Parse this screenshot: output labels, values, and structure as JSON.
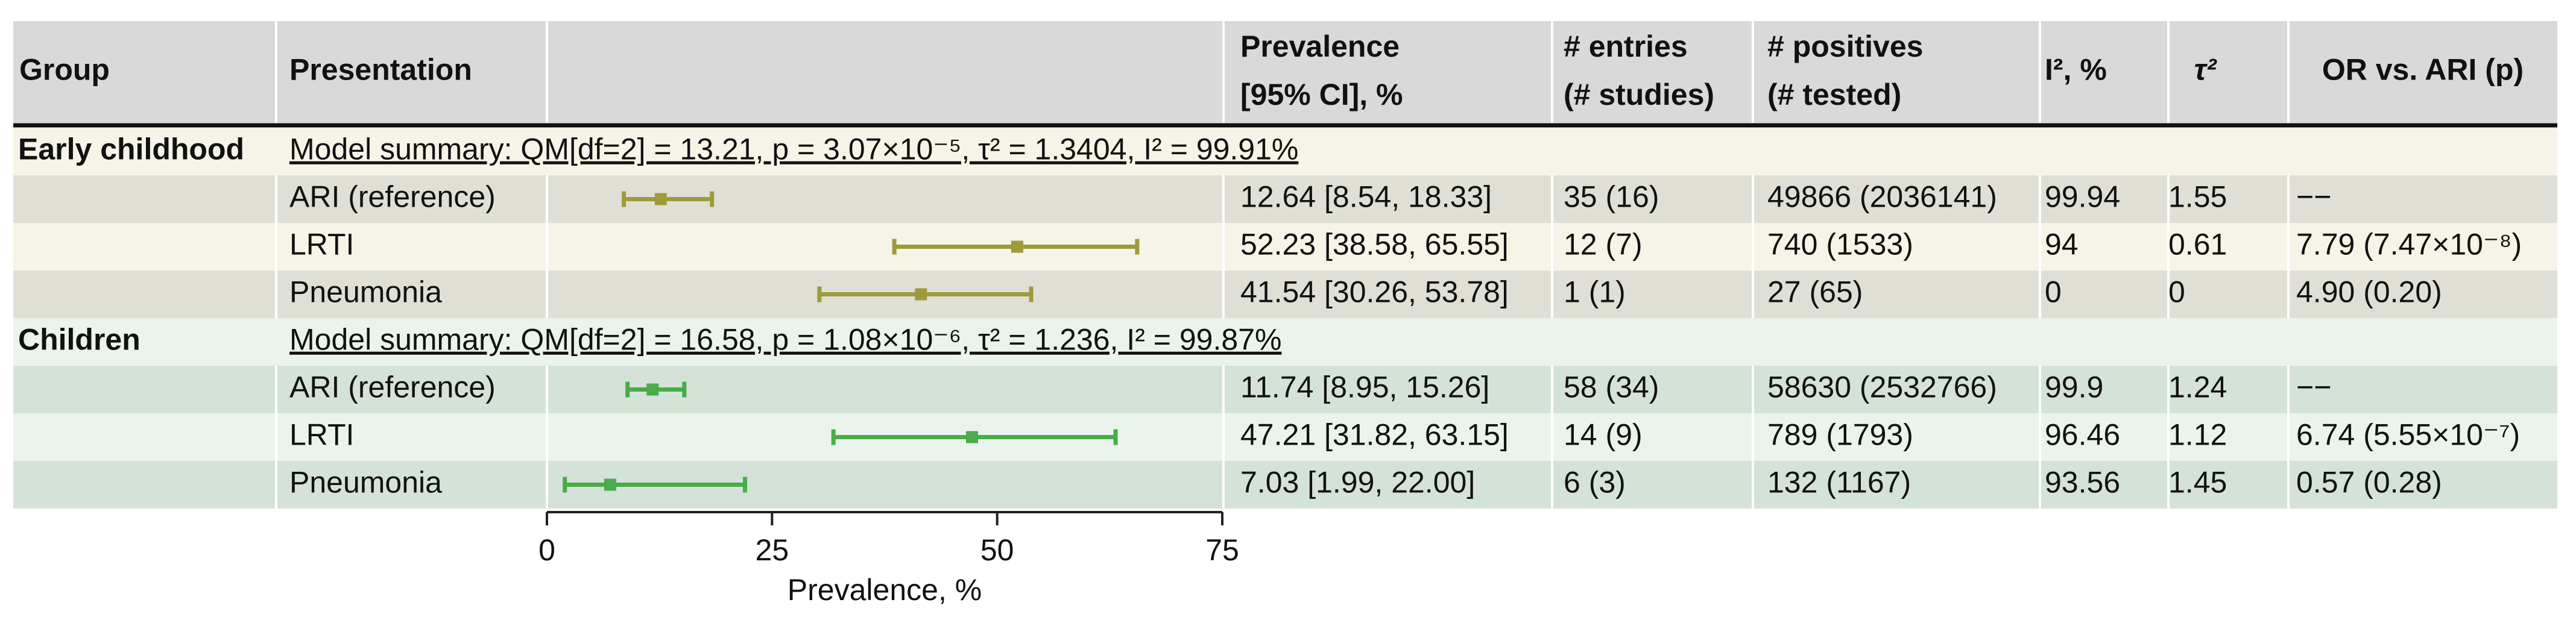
{
  "chart_data": {
    "type": "forest",
    "xlabel": "Prevalence, %",
    "xlim": [
      0,
      75
    ],
    "xticks": [
      0,
      25,
      50,
      75
    ],
    "columns": [
      [
        "Group"
      ],
      [
        "Presentation"
      ],
      [
        "Prevalence",
        "[95% CI], %"
      ],
      [
        "# entries",
        "(# studies)"
      ],
      [
        "# positives",
        "(# tested)"
      ],
      [
        "I², %"
      ],
      [
        "τ²"
      ],
      [
        "OR vs. ARI (p)"
      ]
    ],
    "groups": [
      {
        "name": "Early childhood",
        "color": "#9d9b3c",
        "summary": "Model summary: QM[df=2] = 13.21, p = 3.07×10⁻⁵, τ² = 1.3404, I² = 99.91%",
        "rows": [
          {
            "label": "ARI (reference)",
            "value": 12.64,
            "lower": 8.54,
            "upper": 18.33,
            "value_label": "12.64 [8.54, 18.33]",
            "entries": "35 (16)",
            "positives": "49866 (2036141)",
            "i2": 99.94,
            "tau2": 1.55,
            "or": "−−"
          },
          {
            "label": "LRTI",
            "value": 52.23,
            "lower": 38.58,
            "upper": 65.55,
            "value_label": "52.23 [38.58, 65.55]",
            "entries": "12 (7)",
            "positives": "740 (1533)",
            "i2": 94,
            "tau2": 0.61,
            "or": "7.79 (7.47×10⁻⁸)"
          },
          {
            "label": "Pneumonia",
            "value": 41.54,
            "lower": 30.26,
            "upper": 53.78,
            "value_label": "41.54 [30.26, 53.78]",
            "entries": "1 (1)",
            "positives": "27 (65)",
            "i2": 0,
            "tau2": 0,
            "or": "4.90 (0.20)"
          }
        ]
      },
      {
        "name": "Children",
        "color": "#4aab4a",
        "summary": "Model summary: QM[df=2] = 16.58, p = 1.08×10⁻⁶, τ² = 1.236, I² = 99.87%",
        "rows": [
          {
            "label": "ARI (reference)",
            "value": 11.74,
            "lower": 8.95,
            "upper": 15.26,
            "value_label": "11.74 [8.95, 15.26]",
            "entries": "58 (34)",
            "positives": "58630 (2532766)",
            "i2": 99.9,
            "tau2": 1.24,
            "or": "−−"
          },
          {
            "label": "LRTI",
            "value": 47.21,
            "lower": 31.82,
            "upper": 63.15,
            "value_label": "47.21 [31.82, 63.15]",
            "entries": "14 (9)",
            "positives": "789 (1793)",
            "i2": 96.46,
            "tau2": 1.12,
            "or": "6.74 (5.55×10⁻⁷)"
          },
          {
            "label": "Pneumonia",
            "value": 7.03,
            "lower": 1.99,
            "upper": 22.0,
            "value_label": "7.03 [1.99, 22.00]",
            "entries": "6 (3)",
            "positives": "132 (1167)",
            "i2": 93.56,
            "tau2": 1.45,
            "or": "0.57 (0.28)"
          }
        ]
      }
    ]
  }
}
